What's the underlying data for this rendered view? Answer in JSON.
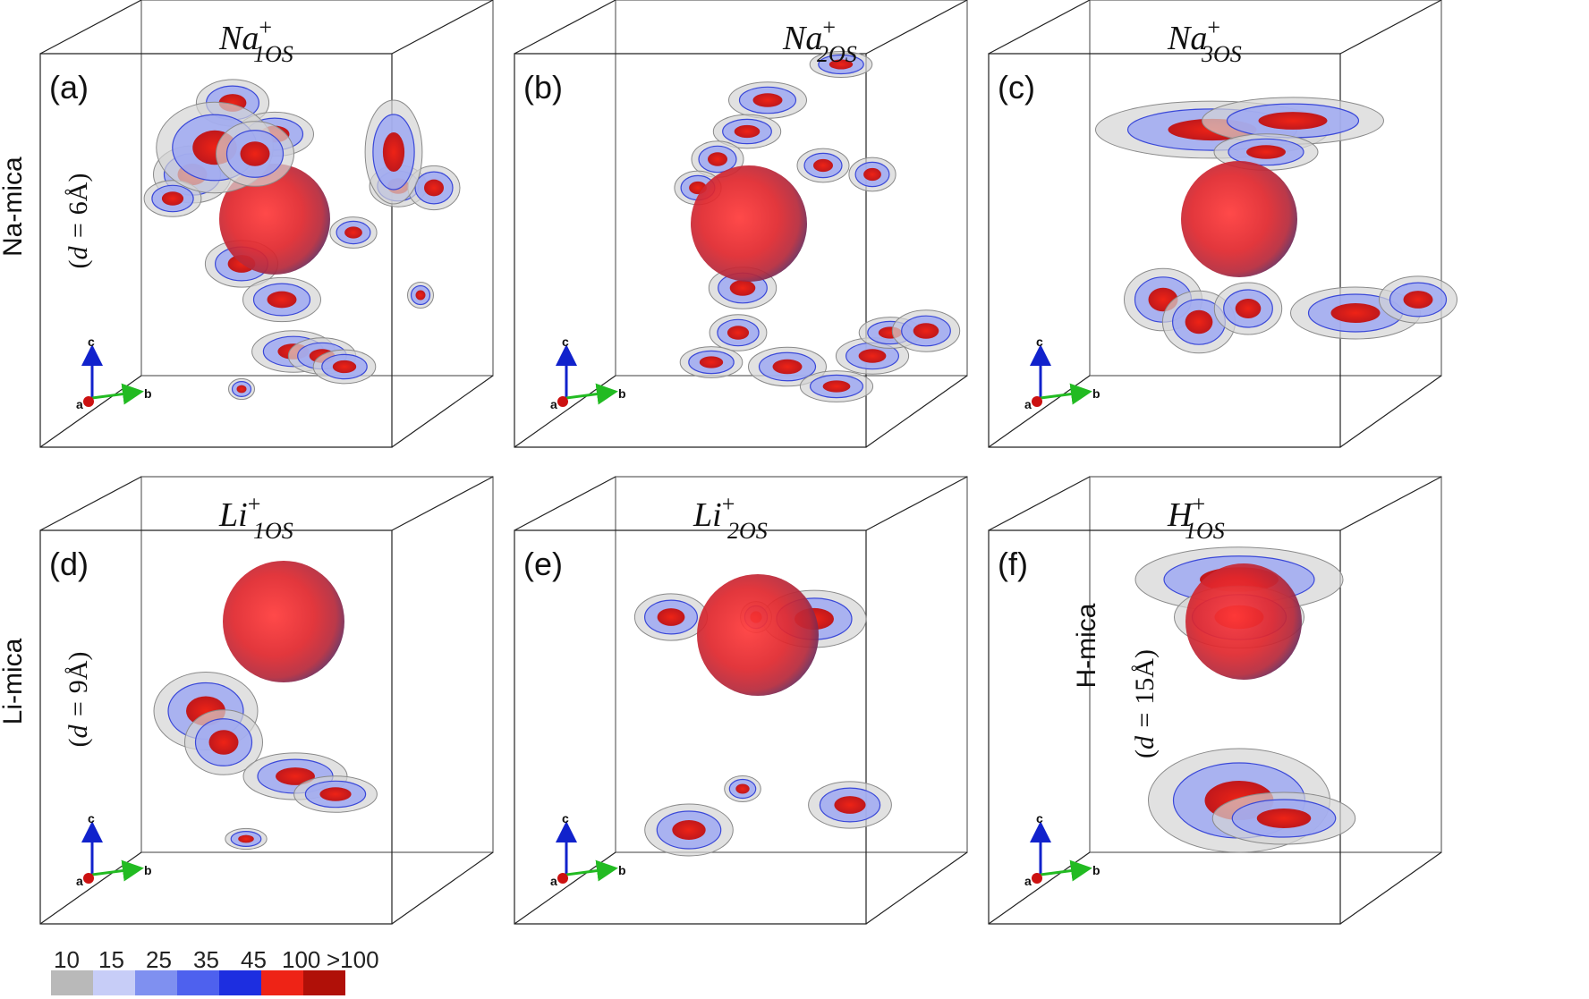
{
  "figure": {
    "row_labels": [
      "Na-mica",
      "Li-mica",
      "H-mica"
    ],
    "spacing_labels": [
      "6Å",
      "9Å",
      "15Å"
    ],
    "spacing_prefix": "d = ",
    "axes": {
      "a": "a",
      "b": "b",
      "c": "c"
    },
    "panels": [
      {
        "letter": "(a)",
        "ion": "Na",
        "sub": "1OS",
        "sup": "+"
      },
      {
        "letter": "(b)",
        "ion": "Na",
        "sub": "2OS",
        "sup": "+"
      },
      {
        "letter": "(c)",
        "ion": "Na",
        "sub": "3OS",
        "sup": "+"
      },
      {
        "letter": "(d)",
        "ion": "Li",
        "sub": "1OS",
        "sup": "+"
      },
      {
        "letter": "(e)",
        "ion": "Li",
        "sub": "2OS",
        "sup": "+"
      },
      {
        "letter": "(f)",
        "ion": "H",
        "sub": "1OS",
        "sup": "+"
      }
    ],
    "legend": {
      "labels": [
        "10",
        "15",
        "25",
        "35",
        "45",
        "100",
        ">100"
      ],
      "colors": [
        "#b9b9b9",
        "#c7cdf7",
        "#7f90f0",
        "#4e61ee",
        "#1d2ee0",
        "#ee2316",
        "#b01008"
      ]
    },
    "colors": {
      "sphere": "#e0262c",
      "box": "#222222",
      "axis_a": "#cc1111",
      "axis_b": "#22bb22",
      "axis_c": "#1122cc"
    }
  }
}
